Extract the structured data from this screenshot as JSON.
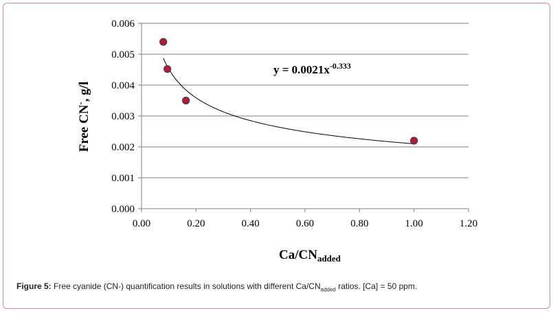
{
  "chart_data": {
    "type": "scatter",
    "xlabel": "Ca/CN",
    "xlabel_sub": "added",
    "ylabel_parts": [
      "Free CN",
      "-",
      ", g/l"
    ],
    "xlim": [
      0,
      1.2
    ],
    "ylim": [
      0,
      0.006
    ],
    "xticks": [
      "0.00",
      "0.20",
      "0.40",
      "0.60",
      "0.80",
      "1.00",
      "1.20"
    ],
    "xtick_values": [
      0,
      0.2,
      0.4,
      0.6,
      0.8,
      1.0,
      1.2
    ],
    "yticks": [
      "0.000",
      "0.001",
      "0.002",
      "0.003",
      "0.004",
      "0.005",
      "0.006"
    ],
    "ytick_values": [
      0,
      0.001,
      0.002,
      0.003,
      0.004,
      0.005,
      0.006
    ],
    "grid": true,
    "series": [
      {
        "points": [
          {
            "x": 0.08,
            "y": 0.0054
          },
          {
            "x": 0.095,
            "y": 0.00452
          },
          {
            "x": 0.163,
            "y": 0.0035
          },
          {
            "x": 1.0,
            "y": 0.0022
          }
        ],
        "marker_color": "#c0182a"
      }
    ],
    "trendline": {
      "equation_main": "y = 0.0021x",
      "equation_exp": "-0.333",
      "coefficient": 0.0021,
      "exponent": -0.333,
      "x_range": [
        0.08,
        1.0
      ]
    }
  },
  "caption": {
    "label": "Figure 5:",
    "text_before": " Free cyanide (CN-) quantification results in solutions with different Ca/CN",
    "sub": "added",
    "text_after": " ratios. [Ca] = 50 ppm."
  }
}
